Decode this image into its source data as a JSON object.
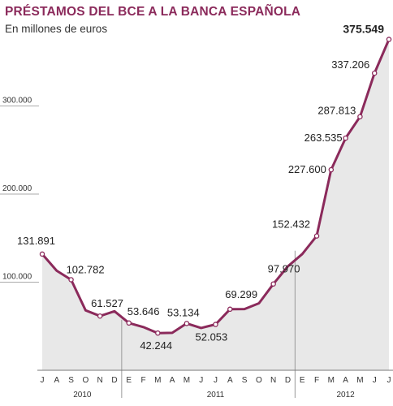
{
  "title": "PRÉSTAMOS DEL BCE A LA BANCA ESPAÑOLA",
  "subtitle": "En millones de euros",
  "colors": {
    "line": "#8b2a5b",
    "title": "#8b2a5b",
    "area": "#e8e8e8",
    "text": "#333333"
  },
  "chart_data": {
    "type": "area",
    "title": "PRÉSTAMOS DEL BCE A LA BANCA ESPAÑOLA",
    "subtitle": "En millones de euros",
    "xlabel": "",
    "ylabel": "",
    "ylim": [
      0,
      380000
    ],
    "yticks": [
      100000,
      200000,
      300000
    ],
    "ytick_labels": [
      "100.000",
      "200.000",
      "300.000"
    ],
    "grid": false,
    "month_labels": [
      "J",
      "A",
      "S",
      "O",
      "N",
      "D",
      "E",
      "F",
      "M",
      "A",
      "M",
      "J",
      "J",
      "A",
      "S",
      "O",
      "N",
      "D",
      "E",
      "F",
      "M",
      "A",
      "M",
      "J",
      "J"
    ],
    "year_labels": [
      {
        "label": "2010",
        "start": 0,
        "end": 6
      },
      {
        "label": "2011",
        "start": 6,
        "end": 18
      },
      {
        "label": "2012",
        "start": 18,
        "end": 24
      }
    ],
    "year_dividers": [
      6,
      18
    ],
    "x": [
      0,
      1,
      2,
      3,
      4,
      5,
      6,
      7,
      8,
      9,
      10,
      11,
      12,
      13,
      14,
      15,
      16,
      17,
      18,
      19,
      20,
      21,
      22,
      23,
      24
    ],
    "values": [
      131891,
      113000,
      102782,
      68000,
      61527,
      67000,
      53646,
      49000,
      42244,
      42500,
      53134,
      48000,
      52053,
      69299,
      69500,
      76000,
      97970,
      118000,
      132000,
      152432,
      227600,
      263535,
      287813,
      337206,
      375549
    ],
    "labels": [
      {
        "index": 0,
        "text": "131.891"
      },
      {
        "index": 2,
        "text": "102.782"
      },
      {
        "index": 4,
        "text": "61.527"
      },
      {
        "index": 6,
        "text": "53.646"
      },
      {
        "index": 8,
        "text": "42.244"
      },
      {
        "index": 10,
        "text": "53.134"
      },
      {
        "index": 12,
        "text": "52.053"
      },
      {
        "index": 13,
        "text": "69.299"
      },
      {
        "index": 16,
        "text": "97.970"
      },
      {
        "index": 19,
        "text": "152.432"
      },
      {
        "index": 20,
        "text": "227.600"
      },
      {
        "index": 21,
        "text": "263.535"
      },
      {
        "index": 22,
        "text": "287.813"
      },
      {
        "index": 23,
        "text": "337.206"
      },
      {
        "index": 24,
        "text": "375.549"
      }
    ]
  }
}
